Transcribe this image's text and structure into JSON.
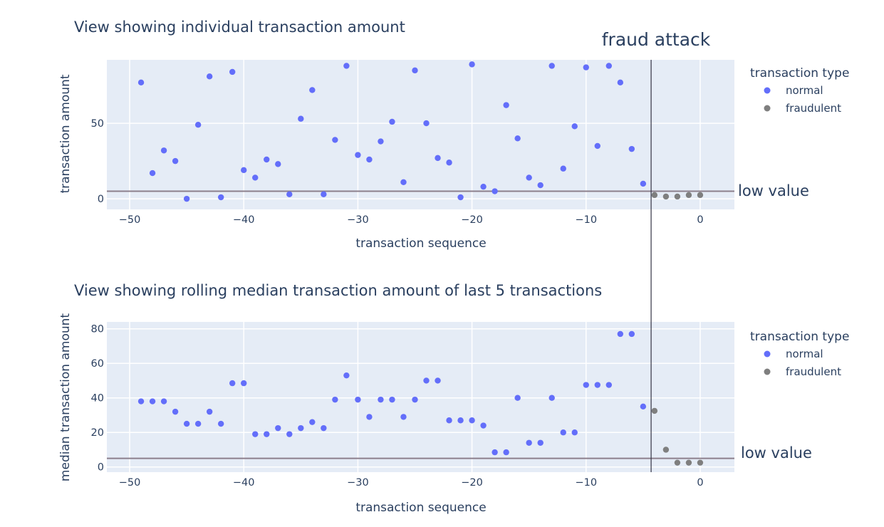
{
  "annotations": {
    "fraud_attack": "fraud attack",
    "low_value": "low value"
  },
  "colors": {
    "normal": "#636efa",
    "fraudulent": "#7f7f7f",
    "low_value_line": "#8c7f8c",
    "plot_background": "#e5ecf6",
    "attack_line": "#333344"
  },
  "fraud_attack_x": -4.3,
  "low_value_threshold": 5,
  "chart_data": [
    {
      "type": "scatter",
      "title": "View showing individual transaction amount",
      "xlabel": "transaction sequence",
      "ylabel": "transaction amount",
      "xlim": [
        -52,
        3
      ],
      "ylim": [
        -7,
        92
      ],
      "x_ticks": [
        -50,
        -40,
        -30,
        -20,
        -10,
        0
      ],
      "x_tick_labels": [
        "−50",
        "−40",
        "−30",
        "−20",
        "−10",
        "0"
      ],
      "y_ticks": [
        0,
        50
      ],
      "y_tick_labels": [
        "0",
        "50"
      ],
      "grid": true,
      "legend": {
        "title": "transaction type",
        "position": "right"
      },
      "series": [
        {
          "name": "normal",
          "x": [
            -49,
            -48,
            -47,
            -46,
            -45,
            -44,
            -43,
            -42,
            -41,
            -40,
            -39,
            -38,
            -37,
            -36,
            -35,
            -34,
            -33,
            -32,
            -31,
            -30,
            -29,
            -28,
            -27,
            -26,
            -25,
            -24,
            -23,
            -22,
            -21,
            -20,
            -19,
            -18,
            -17,
            -16,
            -15,
            -14,
            -13,
            -12,
            -11,
            -10,
            -9,
            -8,
            -7,
            -6,
            -5
          ],
          "y": [
            77,
            17,
            32,
            25,
            0,
            49,
            81,
            1,
            84,
            19,
            14,
            26,
            23,
            3,
            53,
            72,
            3,
            39,
            88,
            29,
            26,
            38,
            51,
            11,
            85,
            50,
            27,
            24,
            1,
            89,
            8,
            5,
            62,
            40,
            14,
            9,
            88,
            20,
            48,
            87,
            35,
            88,
            77,
            33,
            10
          ]
        },
        {
          "name": "fraudulent",
          "x": [
            -4,
            -3,
            -2,
            -1,
            0
          ],
          "y": [
            2.5,
            1.5,
            1.5,
            2.5,
            2.5
          ]
        }
      ]
    },
    {
      "type": "scatter",
      "title": "View showing rolling median transaction amount of last 5 transactions",
      "xlabel": "transaction sequence",
      "ylabel": "median transaction amount",
      "xlim": [
        -52,
        3
      ],
      "ylim": [
        -3,
        84
      ],
      "x_ticks": [
        -50,
        -40,
        -30,
        -20,
        -10,
        0
      ],
      "x_tick_labels": [
        "−50",
        "−40",
        "−30",
        "−20",
        "−10",
        "0"
      ],
      "y_ticks": [
        0,
        20,
        40,
        60,
        80
      ],
      "y_tick_labels": [
        "0",
        "20",
        "40",
        "60",
        "80"
      ],
      "grid": true,
      "legend": {
        "title": "transaction type",
        "position": "right"
      },
      "series": [
        {
          "name": "normal",
          "x": [
            -49,
            -48,
            -47,
            -46,
            -45,
            -44,
            -43,
            -42,
            -41,
            -40,
            -39,
            -38,
            -37,
            -36,
            -35,
            -34,
            -33,
            -32,
            -31,
            -30,
            -29,
            -28,
            -27,
            -26,
            -25,
            -24,
            -23,
            -22,
            -21,
            -20,
            -19,
            -18,
            -17,
            -16,
            -15,
            -14,
            -13,
            -12,
            -11,
            -10,
            -9,
            -8,
            -7,
            -6,
            -5
          ],
          "y": [
            38,
            38,
            38,
            32,
            25,
            25,
            32,
            25,
            48.5,
            48.5,
            19,
            19,
            22.5,
            19,
            22.5,
            26,
            22.5,
            39,
            53,
            39,
            29,
            39,
            39,
            29,
            39,
            50,
            50,
            27,
            27,
            27,
            24,
            8.5,
            8.5,
            40,
            14,
            14,
            40,
            20,
            20,
            47.5,
            47.5,
            47.5,
            77,
            77,
            35
          ]
        },
        {
          "name": "fraudulent",
          "x": [
            -4,
            -3,
            -2,
            -1,
            0
          ],
          "y": [
            32.5,
            10,
            2.5,
            2.5,
            2.5
          ]
        }
      ]
    }
  ]
}
